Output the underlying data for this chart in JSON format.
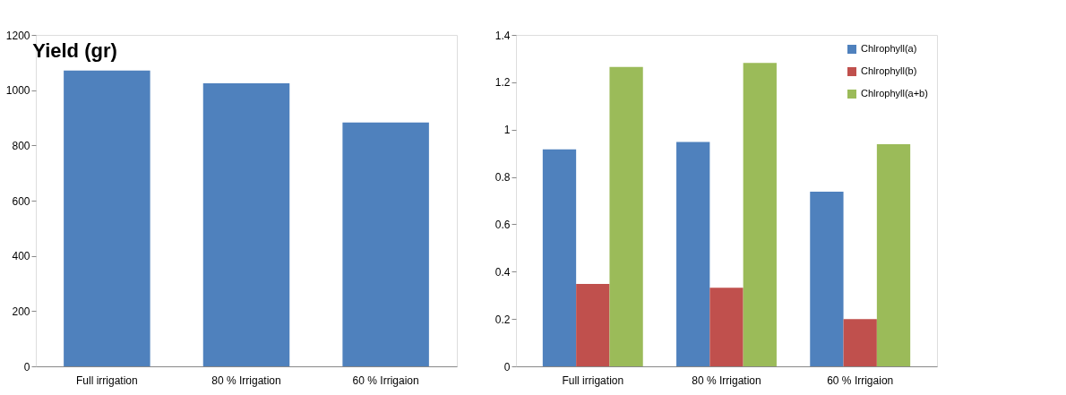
{
  "chart_data": [
    {
      "type": "bar",
      "title": "Yield (gr)",
      "categories": [
        "Full irrigation",
        "80 % Irrigation",
        "60 % Irrigaion"
      ],
      "values": [
        1071,
        1025,
        883
      ],
      "color": "#4f81bd",
      "ylim": [
        0,
        1200
      ],
      "yticks": [
        0,
        200,
        400,
        600,
        800,
        1000,
        1200
      ],
      "grid": false,
      "legend": false
    },
    {
      "type": "bar",
      "categories": [
        "Full irrigation",
        "80 % Irrigation",
        "60 % Irrigaion"
      ],
      "series": [
        {
          "name": "Chlrophyll(a)",
          "color": "#4f81bd",
          "values": [
            0.917,
            0.948,
            0.738
          ]
        },
        {
          "name": "Chlrophyll(b)",
          "color": "#c0504d",
          "values": [
            0.348,
            0.332,
            0.2
          ]
        },
        {
          "name": "Chlrophyll(a+b)",
          "color": "#9bbb59",
          "values": [
            1.265,
            1.282,
            0.938
          ]
        }
      ],
      "ylim": [
        0,
        1.4
      ],
      "yticks": [
        0,
        0.2,
        0.4,
        0.6,
        0.8,
        1,
        1.2,
        1.4
      ],
      "grid": false,
      "legend": "top right"
    }
  ]
}
